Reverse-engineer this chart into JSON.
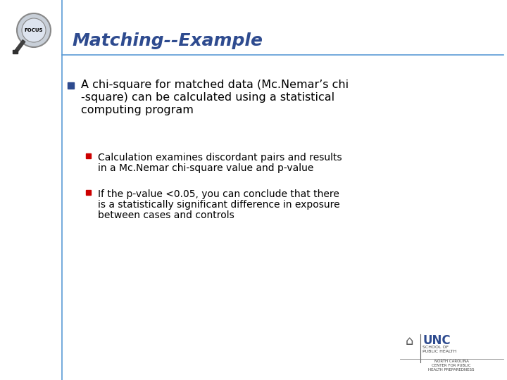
{
  "title": "Matching--Example",
  "title_color": "#2E4B8F",
  "title_fontsize": 18,
  "bg_color": "#FFFFFF",
  "slide_left_bar_color": "#5B9BD5",
  "title_underline_color": "#5B9BD5",
  "bullet1_square_color": "#2E4B8F",
  "bullet1_line1": "A chi-square for matched data (Mc.Nemar’s chi",
  "bullet1_line2": "-square) can be calculated using a statistical",
  "bullet1_line3": "computing program",
  "bullet1_fontsize": 11.5,
  "sub_bullet_color": "#CC0000",
  "sub_bullet1_line1": "Calculation examines discordant pairs and results",
  "sub_bullet1_line2": "in a Mc.Nemar chi-square value and p-value",
  "sub_bullet2_line1": "If the p-value <0.05, you can conclude that there",
  "sub_bullet2_line2": "is a statistically significant difference in exposure",
  "sub_bullet2_line3": "between cases and controls",
  "sub_bullet_fontsize": 10,
  "text_color": "#000000",
  "focus_text": "FOCUS",
  "unc_text": "UNC",
  "unc_sub_text": "SCHOOL OF\nPUBLIC HEALTH",
  "nc_text": "NORTH CAROLINA\nCENTER FOR PUBLIC\nHEALTH PREPAREDNESS"
}
